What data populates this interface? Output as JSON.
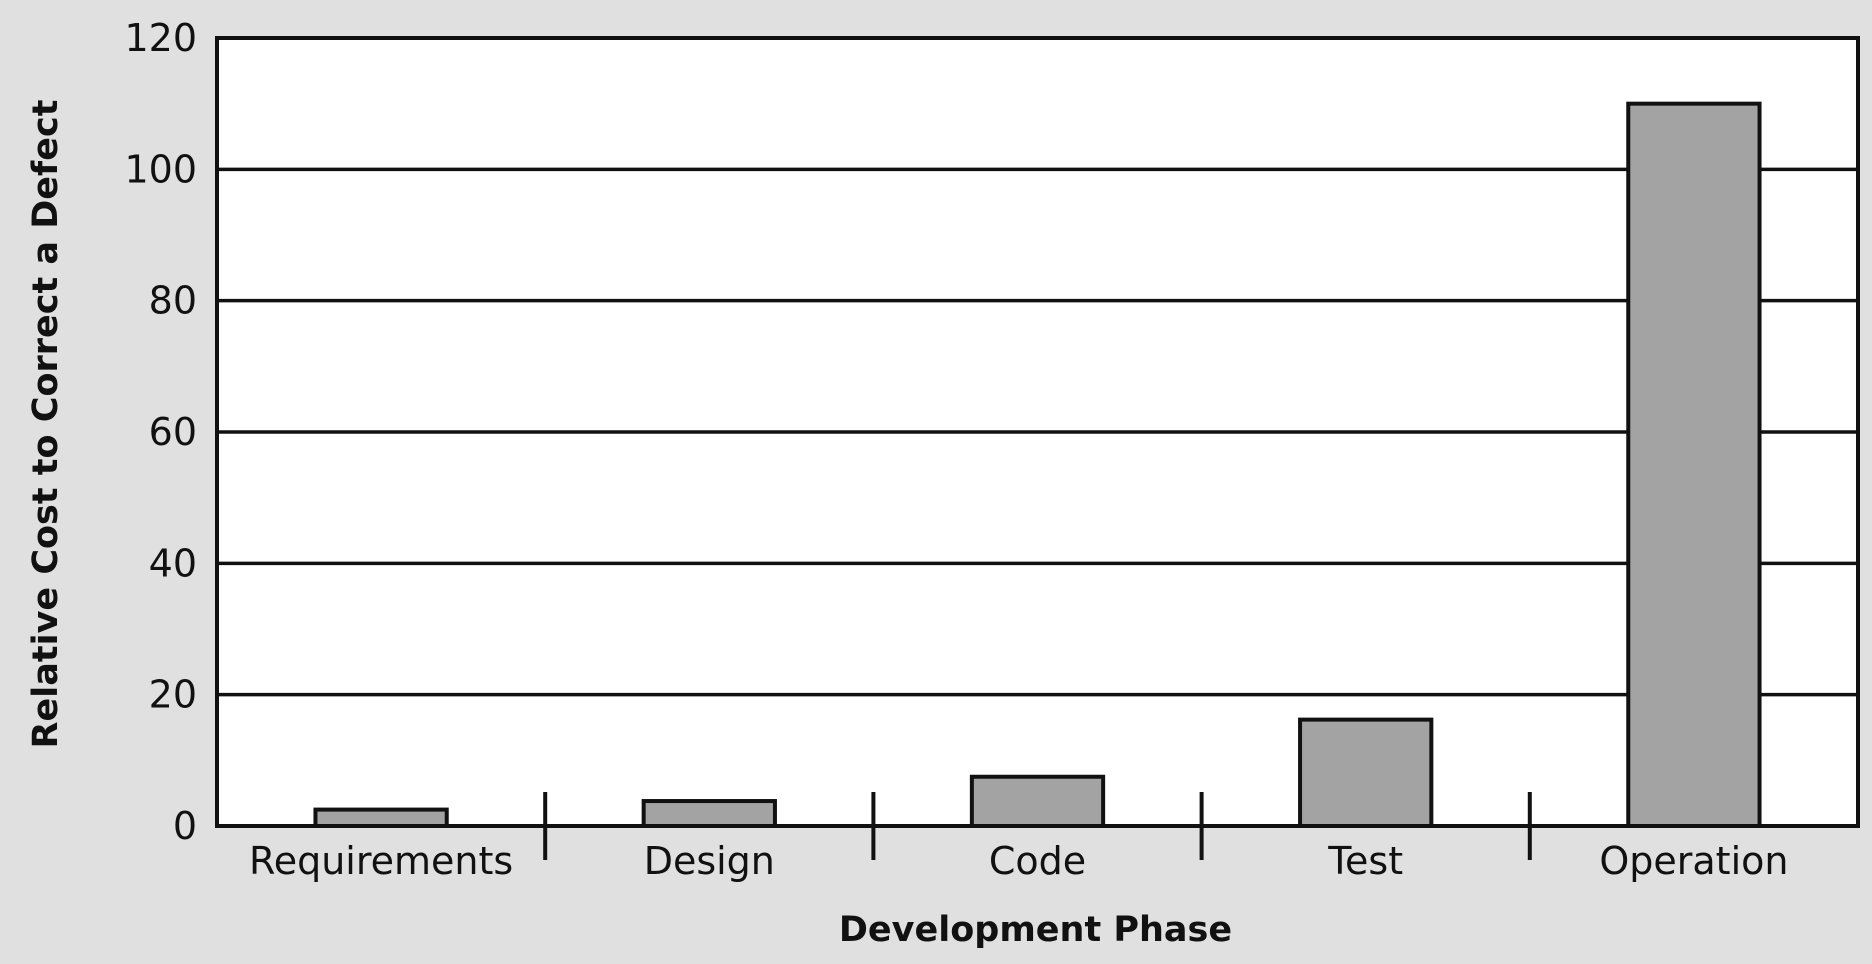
{
  "chart_data": {
    "type": "bar",
    "title": "",
    "xlabel": "Development Phase",
    "ylabel": "Relative Cost to Correct a Defect",
    "categories": [
      "Requirements",
      "Design",
      "Code",
      "Test",
      "Operation"
    ],
    "values": [
      2.5,
      3.8,
      7.5,
      16.2,
      110
    ],
    "ylim": [
      0,
      120
    ],
    "yticks": [
      0,
      20,
      40,
      60,
      80,
      100,
      120
    ],
    "ytick_labels": [
      "0",
      "20",
      "40",
      "60",
      "80",
      "100",
      "120"
    ],
    "grid": true,
    "legend": "none",
    "colors": {
      "background": "#e0e0e0",
      "plot_area": "#ffffff",
      "bar_fill": "#a3a3a3",
      "bar_stroke": "#111111",
      "grid": "#111111",
      "text": "#111111"
    }
  }
}
